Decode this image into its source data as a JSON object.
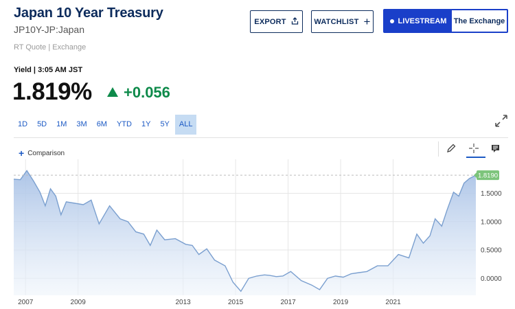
{
  "header": {
    "title": "Japan 10 Year Treasury",
    "symbol": "JP10Y-JP:Japan",
    "rt_quote": "RT Quote | Exchange"
  },
  "actions": {
    "export_label": "EXPORT",
    "watchlist_label": "WATCHLIST",
    "livestream_label": "LIVESTREAM",
    "exchange_label": "The Exchange"
  },
  "quote": {
    "yield_label": "Yield | 3:05 AM JST",
    "price": "1.819%",
    "change": "+0.056"
  },
  "ranges": [
    "1D",
    "5D",
    "1M",
    "3M",
    "6M",
    "YTD",
    "1Y",
    "5Y",
    "ALL"
  ],
  "active_range": "ALL",
  "toolbar": {
    "comparison_label": "Comparison"
  },
  "colors": {
    "navy": "#0c2b5c",
    "accent_blue": "#1b59c4",
    "live_blue": "#1a3fc9",
    "positive_green": "#0e8a4a",
    "line": "#7a9fcf"
  },
  "icons": [
    "share-icon",
    "plus-icon",
    "expand-icon",
    "pencil-icon",
    "crosshair-icon",
    "news-icon"
  ],
  "chart_data": {
    "type": "area",
    "x_ticks": [
      "2007",
      "2009",
      "2013",
      "2015",
      "2017",
      "2019",
      "2021"
    ],
    "y_ticks": [
      "1.5000",
      "1.0000",
      "0.5000",
      "0.0000"
    ],
    "y_tick_values": [
      1.5,
      1.0,
      0.5,
      0.0
    ],
    "current_label": "1.8190",
    "current_value": 1.819,
    "ylim": [
      -0.3,
      2.1
    ],
    "xlim": [
      2006.55,
      2024.15
    ],
    "grid": true,
    "x": [
      2006.55,
      2006.8,
      2007.05,
      2007.3,
      2007.55,
      2007.75,
      2007.95,
      2008.15,
      2008.35,
      2008.55,
      2008.8,
      2009.2,
      2009.5,
      2009.8,
      2010.2,
      2010.6,
      2010.9,
      2011.2,
      2011.5,
      2011.75,
      2012.0,
      2012.3,
      2012.7,
      2013.1,
      2013.35,
      2013.6,
      2013.9,
      2014.2,
      2014.6,
      2014.9,
      2015.2,
      2015.5,
      2015.8,
      2016.1,
      2016.3,
      2016.55,
      2016.8,
      2017.1,
      2017.5,
      2017.9,
      2018.2,
      2018.5,
      2018.8,
      2019.1,
      2019.4,
      2019.7,
      2020.0,
      2020.4,
      2020.8,
      2021.2,
      2021.6,
      2021.9,
      2022.15,
      2022.4,
      2022.6,
      2022.85,
      2023.05,
      2023.3,
      2023.5,
      2023.7,
      2023.9,
      2024.15
    ],
    "y": [
      1.75,
      1.74,
      1.9,
      1.72,
      1.52,
      1.28,
      1.58,
      1.45,
      1.12,
      1.35,
      1.33,
      1.3,
      1.38,
      0.96,
      1.28,
      1.05,
      1.0,
      0.82,
      0.78,
      0.58,
      0.85,
      0.68,
      0.7,
      0.6,
      0.58,
      0.42,
      0.52,
      0.32,
      0.22,
      -0.07,
      -0.23,
      0.0,
      0.04,
      0.06,
      0.05,
      0.03,
      0.04,
      0.12,
      -0.04,
      -0.12,
      -0.2,
      0.0,
      0.04,
      0.02,
      0.08,
      0.1,
      0.12,
      0.22,
      0.22,
      0.42,
      0.36,
      0.78,
      0.62,
      0.75,
      1.05,
      0.92,
      1.2,
      1.52,
      1.45,
      1.68,
      1.76,
      1.82
    ]
  }
}
